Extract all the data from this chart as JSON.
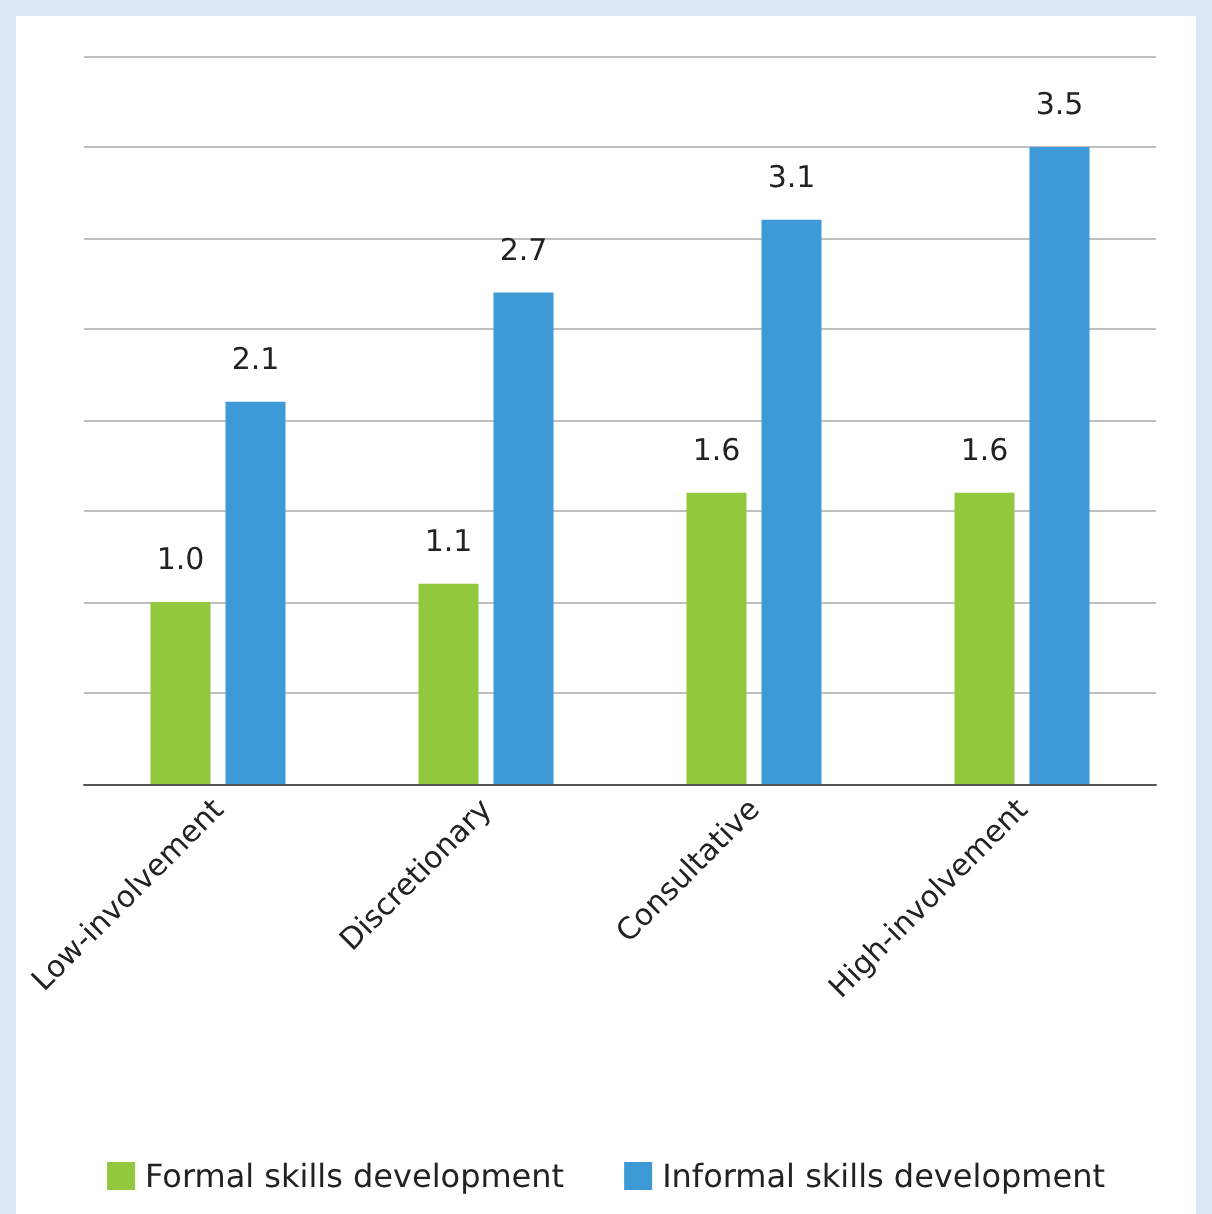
{
  "chart_data": {
    "type": "bar",
    "categories": [
      "Low-involvement",
      "Discretionary",
      "Consultative",
      "High-involvement"
    ],
    "series": [
      {
        "name": "Formal skills development",
        "color": "#92c83e",
        "values": [
          1.0,
          1.1,
          1.6,
          1.6
        ],
        "value_labels": [
          "1.0",
          "1.1",
          "1.6",
          "1.6"
        ]
      },
      {
        "name": "Informal skills development",
        "color": "#3d9ad6",
        "values": [
          2.1,
          2.7,
          3.1,
          3.5
        ],
        "value_labels": [
          "2.1",
          "2.7",
          "3.1",
          "3.5"
        ]
      }
    ],
    "ylim": [
      0,
      4
    ],
    "yticks": [
      {
        "value": 0,
        "label": null
      },
      {
        "value": 0.5,
        "label": null
      },
      {
        "value": 1,
        "label": null
      },
      {
        "value": 1.5,
        "label": null
      },
      {
        "value": 2,
        "label": null
      },
      {
        "value": 2.5,
        "label": null
      },
      {
        "value": 3,
        "label": null
      },
      {
        "value": 3.5,
        "label": null
      },
      {
        "value": 4,
        "label": null
      }
    ],
    "grid": "y",
    "legend": "bottom",
    "tick_labels": "x"
  }
}
